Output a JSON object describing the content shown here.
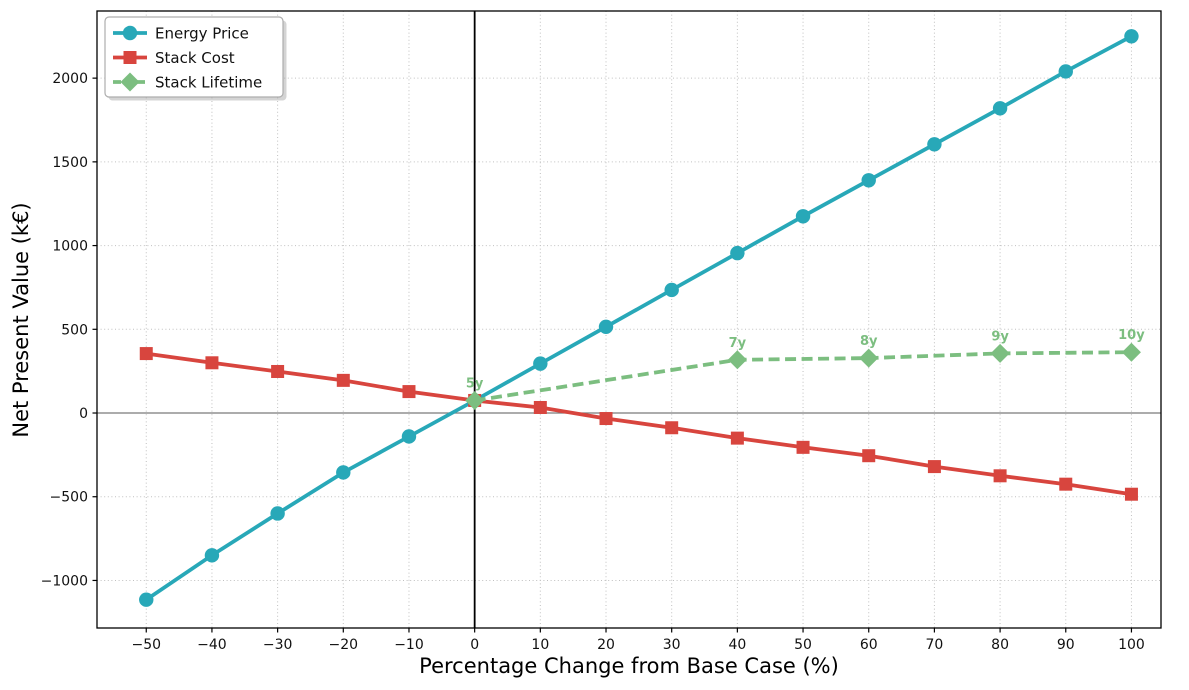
{
  "chart_data": {
    "type": "line",
    "xlabel": "Percentage Change from Base Case (%)",
    "ylabel": "Net Present Value (k€)",
    "xlim": [
      -57.5,
      104.5
    ],
    "ylim": [
      -1284,
      2401
    ],
    "xticks": [
      -50,
      -40,
      -30,
      -20,
      -10,
      0,
      10,
      20,
      30,
      40,
      50,
      60,
      70,
      80,
      90,
      100
    ],
    "yticks": [
      -1000,
      -500,
      0,
      500,
      1000,
      1500,
      2000
    ],
    "grid": "dotted",
    "legend": {
      "position": "upper-left",
      "entries": [
        "Energy Price",
        "Stack Cost",
        "Stack Lifetime"
      ]
    },
    "reference_lines": {
      "vertical_x": 0,
      "vertical_color": "#000000",
      "horizontal_y": 0,
      "horizontal_color": "#7a7a7a"
    },
    "series": [
      {
        "name": "Energy Price",
        "color": "#28a8b8",
        "marker": "circle",
        "linestyle": "solid",
        "x": [
          -50,
          -40,
          -30,
          -20,
          -10,
          0,
          10,
          20,
          30,
          40,
          50,
          60,
          70,
          80,
          90,
          100
        ],
        "values": [
          -1115,
          -850,
          -600,
          -355,
          -140,
          75,
          295,
          515,
          735,
          955,
          1175,
          1390,
          1605,
          1820,
          2040,
          2250
        ]
      },
      {
        "name": "Stack Cost",
        "color": "#d8453e",
        "marker": "square",
        "linestyle": "solid",
        "x": [
          -50,
          -40,
          -30,
          -20,
          -10,
          0,
          10,
          20,
          30,
          40,
          50,
          60,
          70,
          80,
          90,
          100
        ],
        "values": [
          355,
          300,
          248,
          195,
          128,
          75,
          33,
          -33,
          -88,
          -150,
          -205,
          -255,
          -320,
          -375,
          -425,
          -485
        ]
      },
      {
        "name": "Stack Lifetime",
        "color": "#7cbe80",
        "marker": "diamond",
        "linestyle": "dashed",
        "x": [
          0,
          40,
          60,
          80,
          100
        ],
        "values": [
          75,
          318,
          328,
          356,
          363
        ],
        "point_labels": [
          "5y",
          "7y",
          "8y",
          "9y",
          "10y"
        ]
      }
    ]
  }
}
